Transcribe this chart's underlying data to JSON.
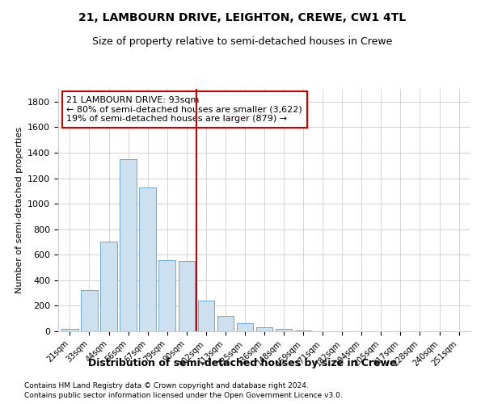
{
  "title1": "21, LAMBOURN DRIVE, LEIGHTON, CREWE, CW1 4TL",
  "title2": "Size of property relative to semi-detached houses in Crewe",
  "xlabel": "Distribution of semi-detached houses by size in Crewe",
  "ylabel": "Number of semi-detached properties",
  "categories": [
    "21sqm",
    "33sqm",
    "44sqm",
    "56sqm",
    "67sqm",
    "79sqm",
    "90sqm",
    "102sqm",
    "113sqm",
    "125sqm",
    "136sqm",
    "148sqm",
    "159sqm",
    "171sqm",
    "182sqm",
    "194sqm",
    "205sqm",
    "217sqm",
    "228sqm",
    "240sqm",
    "251sqm"
  ],
  "values": [
    20,
    320,
    700,
    1350,
    1130,
    560,
    550,
    240,
    120,
    65,
    30,
    20,
    5,
    0,
    0,
    0,
    0,
    0,
    0,
    0,
    0
  ],
  "bar_color": "#cce0f0",
  "bar_edge_color": "#6aaad4",
  "vline_x_index": 6,
  "vline_color": "#cc0000",
  "annotation_line1": "21 LAMBOURN DRIVE: 93sqm",
  "annotation_line2": "← 80% of semi-detached houses are smaller (3,622)",
  "annotation_line3": "19% of semi-detached houses are larger (879) →",
  "annotation_box_color": "#ffffff",
  "annotation_box_edge": "#cc0000",
  "ylim": [
    0,
    1900
  ],
  "yticks": [
    0,
    200,
    400,
    600,
    800,
    1000,
    1200,
    1400,
    1600,
    1800
  ],
  "footnote1": "Contains HM Land Registry data © Crown copyright and database right 2024.",
  "footnote2": "Contains public sector information licensed under the Open Government Licence v3.0.",
  "bg_color": "#ffffff",
  "grid_color": "#cccccc"
}
